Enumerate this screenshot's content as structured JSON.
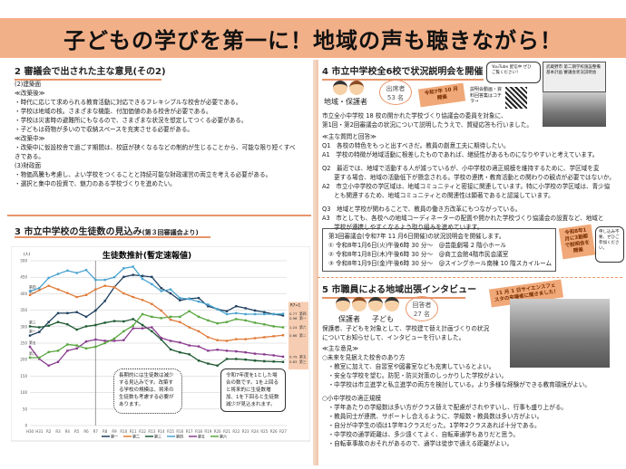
{
  "banner": {
    "title": "子どもの学びを第一に！地域の声も聴きながら！"
  },
  "sec2": {
    "title": "2 審議会で出された主な意見(その2)",
    "lines": [
      "(2)建築面",
      "≪改築後≫",
      "・時代に応じて求められる教育活動に対応できるフレキシブルな校舎が必要である。",
      "・学校は地域の核。さまざまな機能、付加価値のある校舎が必要である。",
      "・学校は災害時の避難所にもなるので、さまざまな状況を想定してつくる必要がある。",
      "・子どもは荷物が多いので収納スペースを充実させる必要がある。",
      "≪改築中≫",
      "・改築中に仮設校舎で過ごす期間は、校庭が狭くなるなどの制約が生じることから、可能な限り短くすべ",
      "きである。",
      "(3)財政面",
      "・物価高騰も考慮し、よい学校をつくることと持続可能な財政運営の両立を考える必要がある。",
      "・選択と集中の投資で、魅力のある学校づくりを進めたい。"
    ]
  },
  "sec3": {
    "title": "3 市立中学校の生徒数の見込み",
    "sub": "(第３回審議会より)",
    "note1": "長期的には生徒数は減少する見込みです。改築する学校の規模は、将来の生徒数も考慮する必要があります。",
    "note2": "令和7年度を1とした場合の数です。1を上回ると将来的に生徒数増加、1を下回ると生徒数減少が見込まれます。"
  },
  "chart_data": {
    "type": "line",
    "title": "生徒数推計(暫定速報値)",
    "ylabel": "(人)",
    "ylim": [
      0,
      500
    ],
    "yticks": [
      0,
      50,
      100,
      150,
      200,
      250,
      300,
      350,
      400,
      450,
      500
    ],
    "grid": true,
    "legend": "bottom",
    "categories": [
      "H30",
      "H31",
      "R2",
      "R3",
      "R4",
      "R5",
      "R6",
      "R7",
      "R8",
      "R9",
      "R10",
      "R11",
      "R12",
      "R13",
      "R14",
      "R15",
      "R16",
      "R17",
      "R18",
      "R19",
      "R20",
      "R21",
      "R22",
      "R23",
      "R24",
      "R25",
      "R26",
      "R27"
    ],
    "reference_line": "R7",
    "ratio_header": "R7=1",
    "series": [
      {
        "name": "第一",
        "color": "#1f3f5f",
        "ratio": "0.96",
        "values": [
          273,
          284,
          314,
          341,
          341,
          344,
          330,
          349,
          378,
          420,
          451,
          457,
          454,
          451,
          417,
          401,
          380,
          385,
          387,
          362,
          353,
          347,
          362,
          356,
          349,
          344,
          338,
          334
        ]
      },
      {
        "name": "第二",
        "color": "#e07b39",
        "ratio": "0.66",
        "values": [
          396,
          411,
          424,
          413,
          402,
          390,
          396,
          413,
          424,
          420,
          401,
          390,
          381,
          369,
          349,
          321,
          314,
          298,
          286,
          268,
          259,
          257,
          262,
          262,
          265,
          268,
          271,
          274
        ]
      },
      {
        "name": "第三",
        "color": "#1e5a32",
        "ratio": "0.63",
        "values": [
          301,
          298,
          303,
          314,
          307,
          291,
          301,
          305,
          312,
          317,
          316,
          323,
          305,
          286,
          261,
          231,
          222,
          216,
          197,
          188,
          182,
          202,
          202,
          200,
          197,
          195,
          194,
          193
        ]
      },
      {
        "name": "第四",
        "color": "#4aa3cf",
        "ratio": "0.77",
        "values": [
          408,
          417,
          448,
          460,
          470,
          463,
          472,
          442,
          442,
          450,
          477,
          482,
          445,
          429,
          408,
          413,
          387,
          384,
          376,
          367,
          353,
          338,
          341,
          338,
          338,
          338,
          338,
          339
        ]
      },
      {
        "name": "第五",
        "color": "#8a3c8f",
        "ratio": "0.79",
        "values": [
          239,
          202,
          182,
          193,
          227,
          234,
          255,
          261,
          257,
          257,
          259,
          295,
          295,
          298,
          266,
          257,
          252,
          243,
          240,
          227,
          230,
          227,
          225,
          222,
          218,
          216,
          213,
          209
        ]
      },
      {
        "name": "第六",
        "color": "#5aa640",
        "ratio": "1.24",
        "values": [
          206,
          206,
          223,
          227,
          246,
          243,
          234,
          239,
          250,
          264,
          286,
          303,
          338,
          330,
          326,
          330,
          330,
          347,
          330,
          319,
          310,
          314,
          323,
          319,
          312,
          307,
          301,
          298
        ]
      }
    ]
  },
  "sec4": {
    "title": "4 市立中学校全6校で状況説明会を開催",
    "people": "地域・保護者",
    "count_label": "出席者",
    "count": "53 名",
    "date_badge": "令和7年 10 月開催",
    "qr_label": "説明会動画・資料回答集はコチラ→",
    "yt_bubble": "YouTube 配信中 ぜひご覧ください！",
    "slide": "武蔵野市 第二期学校施設整備基本計画 審議会状況説明会",
    "intro": [
      "市立全小中学校 18 校の開かれた学校づくり協議会の委員を対象に、",
      "第1回・第2回審議会の状況について説明したうえで、質疑応答も行いました。"
    ],
    "qa": [
      "≪主な質問と回答≫",
      "Q1　各校の特色をもっと出すべきだ。教員の創意工夫に期待したい。",
      "A1　学校の特徴が地域活動に根差したものであれば、継続性があるものになりやすいと考えています。",
      "",
      "Q2　最近では、地域で活動する人が減っているが、小中学校の適正規模を維持するために、学区域を変",
      "　　更する場合、地域の活動低下が懸念される。学校の連携・教育活動との関わりの観点が必要ではないか。",
      "A2　市立小中学校の学区域は、地域コミュニティと密接に関連しています。特に小学校の学区域は、青少協",
      "　　とも関連するため、地域コミュニティとの関連性は顕著であると認識しています。",
      "",
      "Q3　地域と学校が関わることで、教員の働き方改革にもつながっている。",
      "A3　市としても、各校への地域コーディネーターの配置や開かれた学校づくり協議会の設置など、地域と",
      "　　学校が連携しやすくなるよう取り組みを進めています。"
    ],
    "box": [
      "第3回審議会(令和7年 11 月6日開催)の状況説明会を開催します。",
      "① 令和8年1月6日(火)午後6時 30 分～　@芸能劇場 2 階小ホール",
      "② 令和8年1月8日(木)午後6時 30 分～　@商工会館4階市民会議室",
      "③ 令和8年1月9日(金)午後6時 30 分～　@スイングホール南棟 10 階スカイルーム"
    ],
    "box_badge": "令和8年1月に3副都で説明会を開催",
    "box_bubble": "申し込み不要、ぜひご参加ください。"
  },
  "sec5": {
    "title": "5 市職員による地域出張インタビュー",
    "people1": "保護者",
    "people2": "子ども",
    "count_label": "回答者",
    "count": "27 名",
    "photo_badge": "11 月 1 日サイエンスフェスタの来場者に聞きました！",
    "intro": [
      "保護者、子どもを対象として、学校建て替え計画づくりの状況",
      "についてお知らせして、インタビューを行いました。"
    ],
    "lines": [
      "≪主な意見≫",
      "○未来を見据えた校舎のあり方",
      "　・教室に加えて、自習室や図書室なども充実しているとよい。",
      "　・安全な学校を望む。防犯・防災対策のしっかりした学校がよい。",
      "　・中学校は市立進学と私立進学の両方を検討している。より多様な経験ができる教育環境がよい。",
      "",
      "○小中学校の適正規模",
      "　・学年あたりの学級数は多い方がクラス替えで配慮がされやすいし、行事も盛り上がる。",
      "　・教員同士が連携、サポートし合えるように、学級数・教員数は多い方がよい。",
      "　・自分が中学生の頃は1学年1クラスだった。1学年2クラスあれば十分である。",
      "　・中学校の通学距離は、多少遠くてよく、自転車通学もありだと思う。",
      "　・自転車事故のおそれがあるので、通学は徒歩で通える距離がよい。"
    ]
  }
}
